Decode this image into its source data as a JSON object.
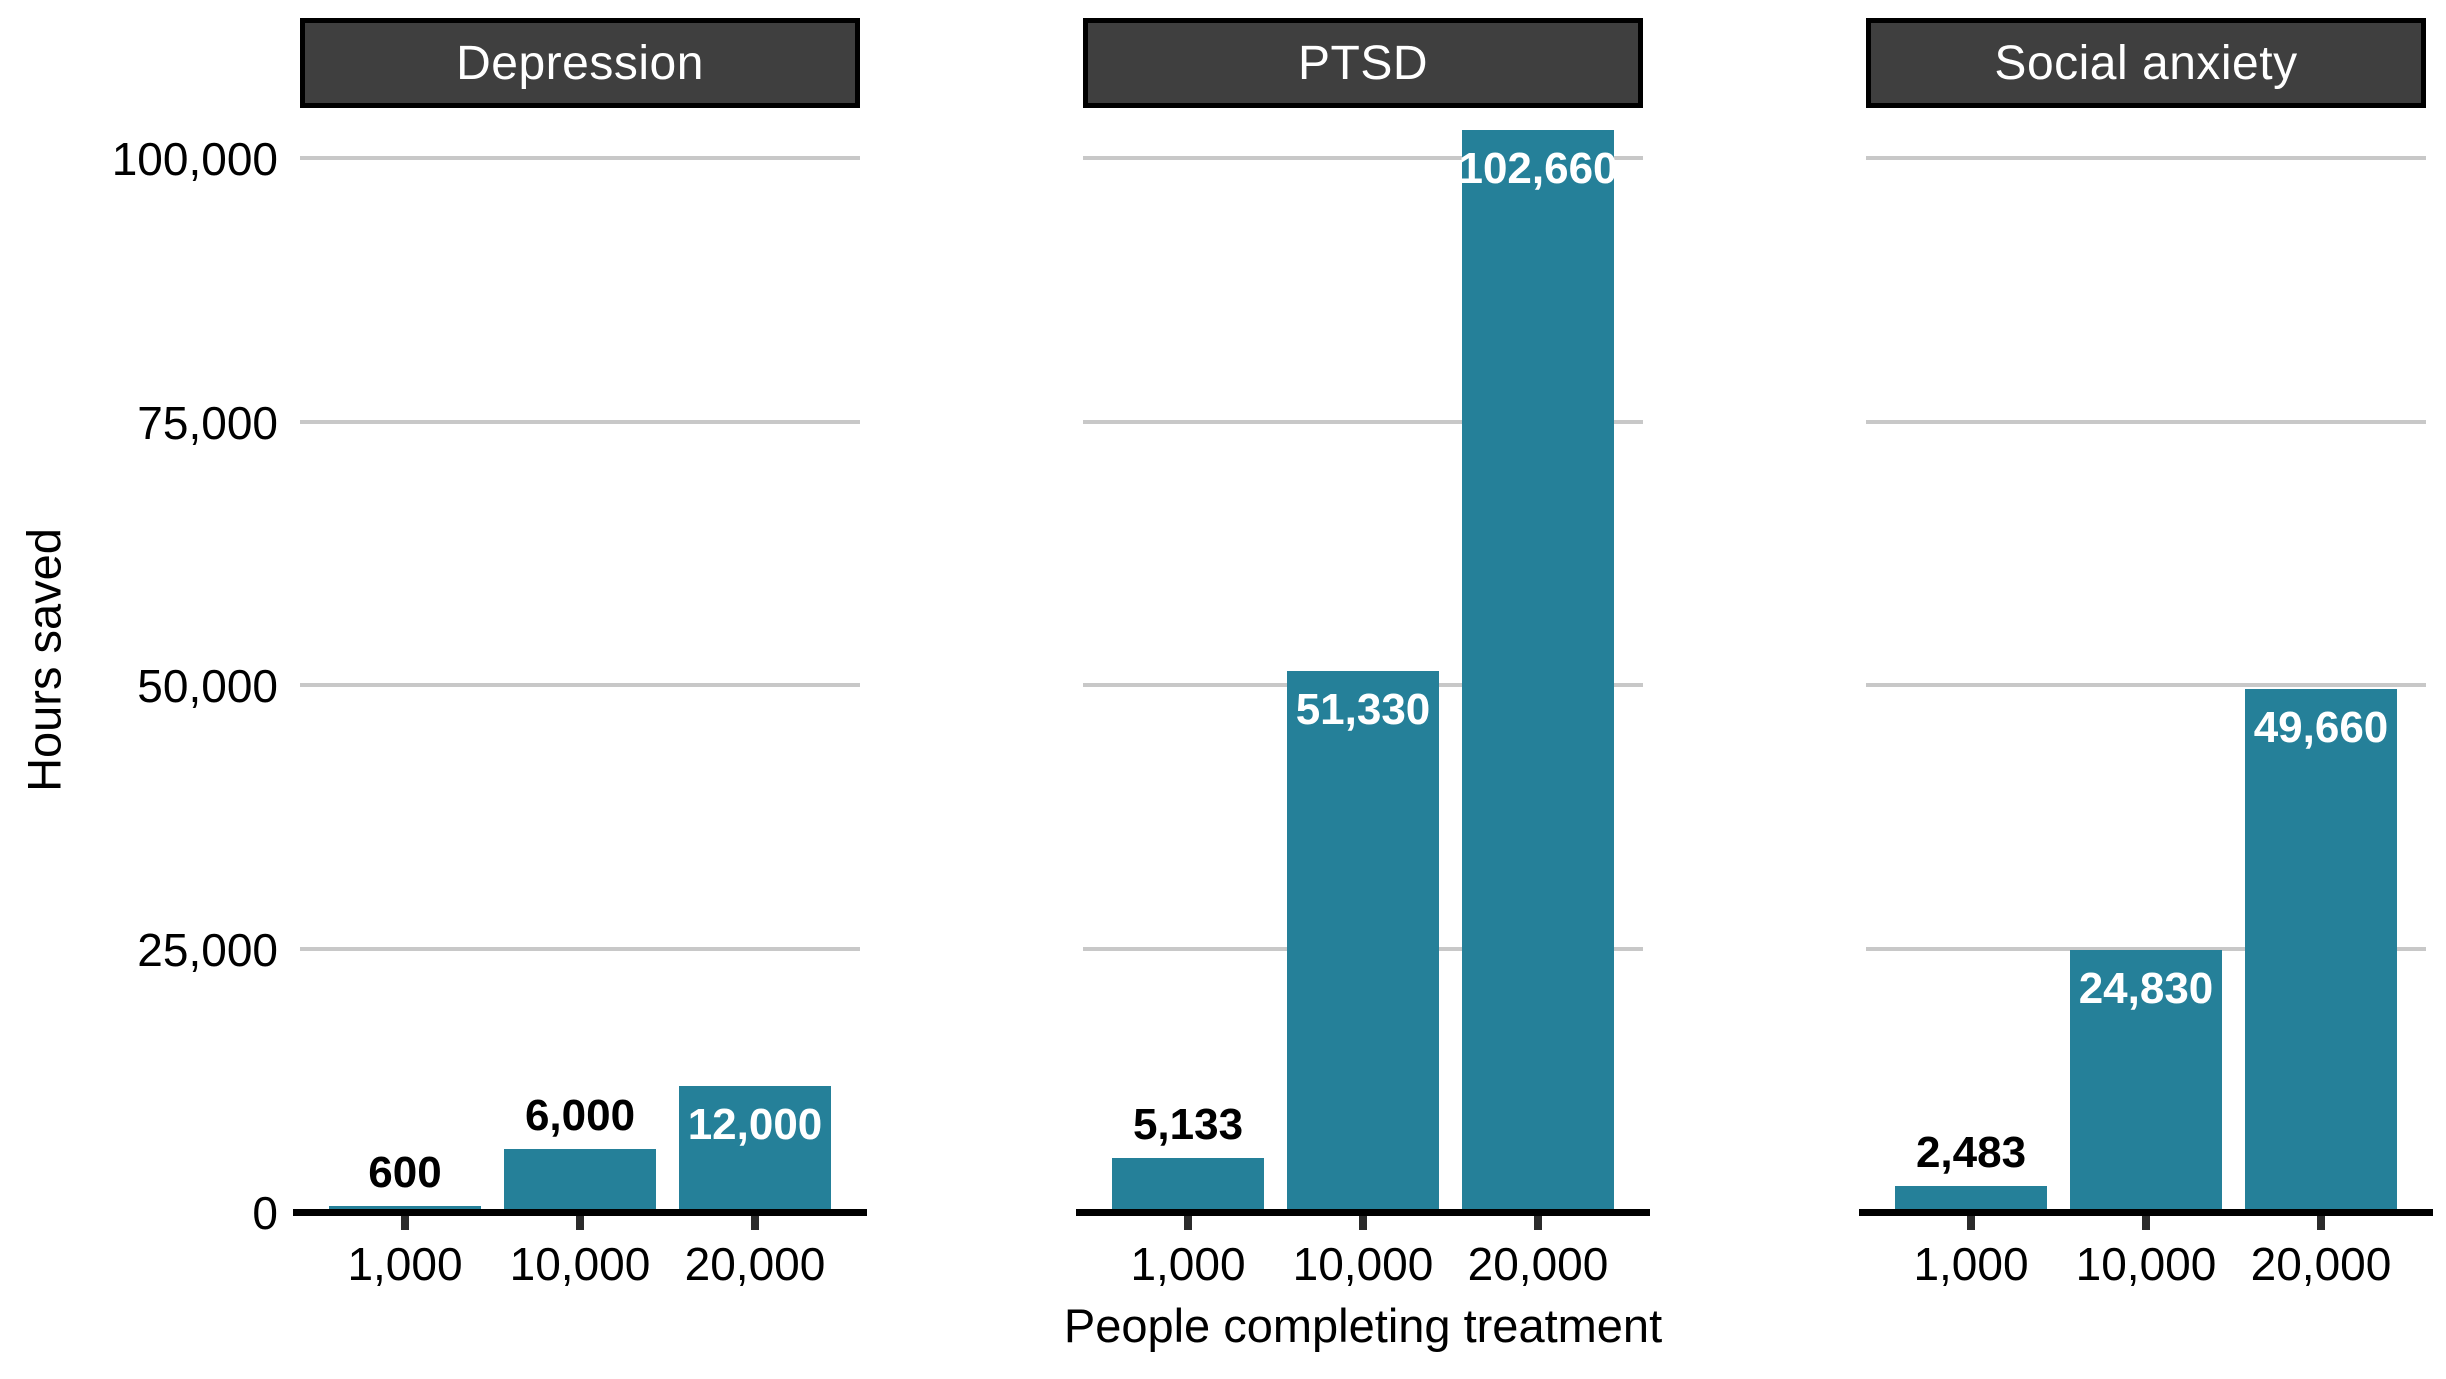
{
  "figure": {
    "background": "#ffffff",
    "xlabel": "People completing treatment",
    "ylabel": "Hours saved"
  },
  "chart_data": {
    "type": "bar",
    "title": "",
    "xlabel": "People completing treatment",
    "ylabel": "Hours saved",
    "categories": [
      "1,000",
      "10,000",
      "20,000"
    ],
    "facets": [
      {
        "label": "Depression",
        "values": [
          600,
          6000,
          12000
        ],
        "value_labels": [
          "600",
          "6,000",
          "12,000"
        ],
        "label_inside": [
          false,
          false,
          true
        ]
      },
      {
        "label": "PTSD",
        "values": [
          5133,
          51330,
          102660
        ],
        "value_labels": [
          "5,133",
          "51,330",
          "102,660"
        ],
        "label_inside": [
          false,
          true,
          true
        ]
      },
      {
        "label": "Social anxiety",
        "values": [
          2483,
          24830,
          49660
        ],
        "value_labels": [
          "2,483",
          "24,830",
          "49,660"
        ],
        "label_inside": [
          false,
          true,
          true
        ]
      }
    ],
    "yticks": [
      {
        "value": 0,
        "label": "0"
      },
      {
        "value": 25000,
        "label": "25,000"
      },
      {
        "value": 50000,
        "label": "50,000"
      },
      {
        "value": 75000,
        "label": "75,000"
      },
      {
        "value": 100000,
        "label": "100,000"
      }
    ],
    "ylim": [
      0,
      104700
    ],
    "grid": "horizontal-major-only",
    "legend": "none",
    "colors": {
      "bar": "#258099",
      "strip_background": "#3f3f3f",
      "strip_border": "#000000",
      "strip_text": "#ffffff",
      "gridline": "#c8c8c8",
      "axis_line": "#000000",
      "tick_mark": "#2b2b2b",
      "label_inside_bar": "#ffffff",
      "label_outside_bar": "#000000",
      "tick_text": "#000000"
    }
  }
}
